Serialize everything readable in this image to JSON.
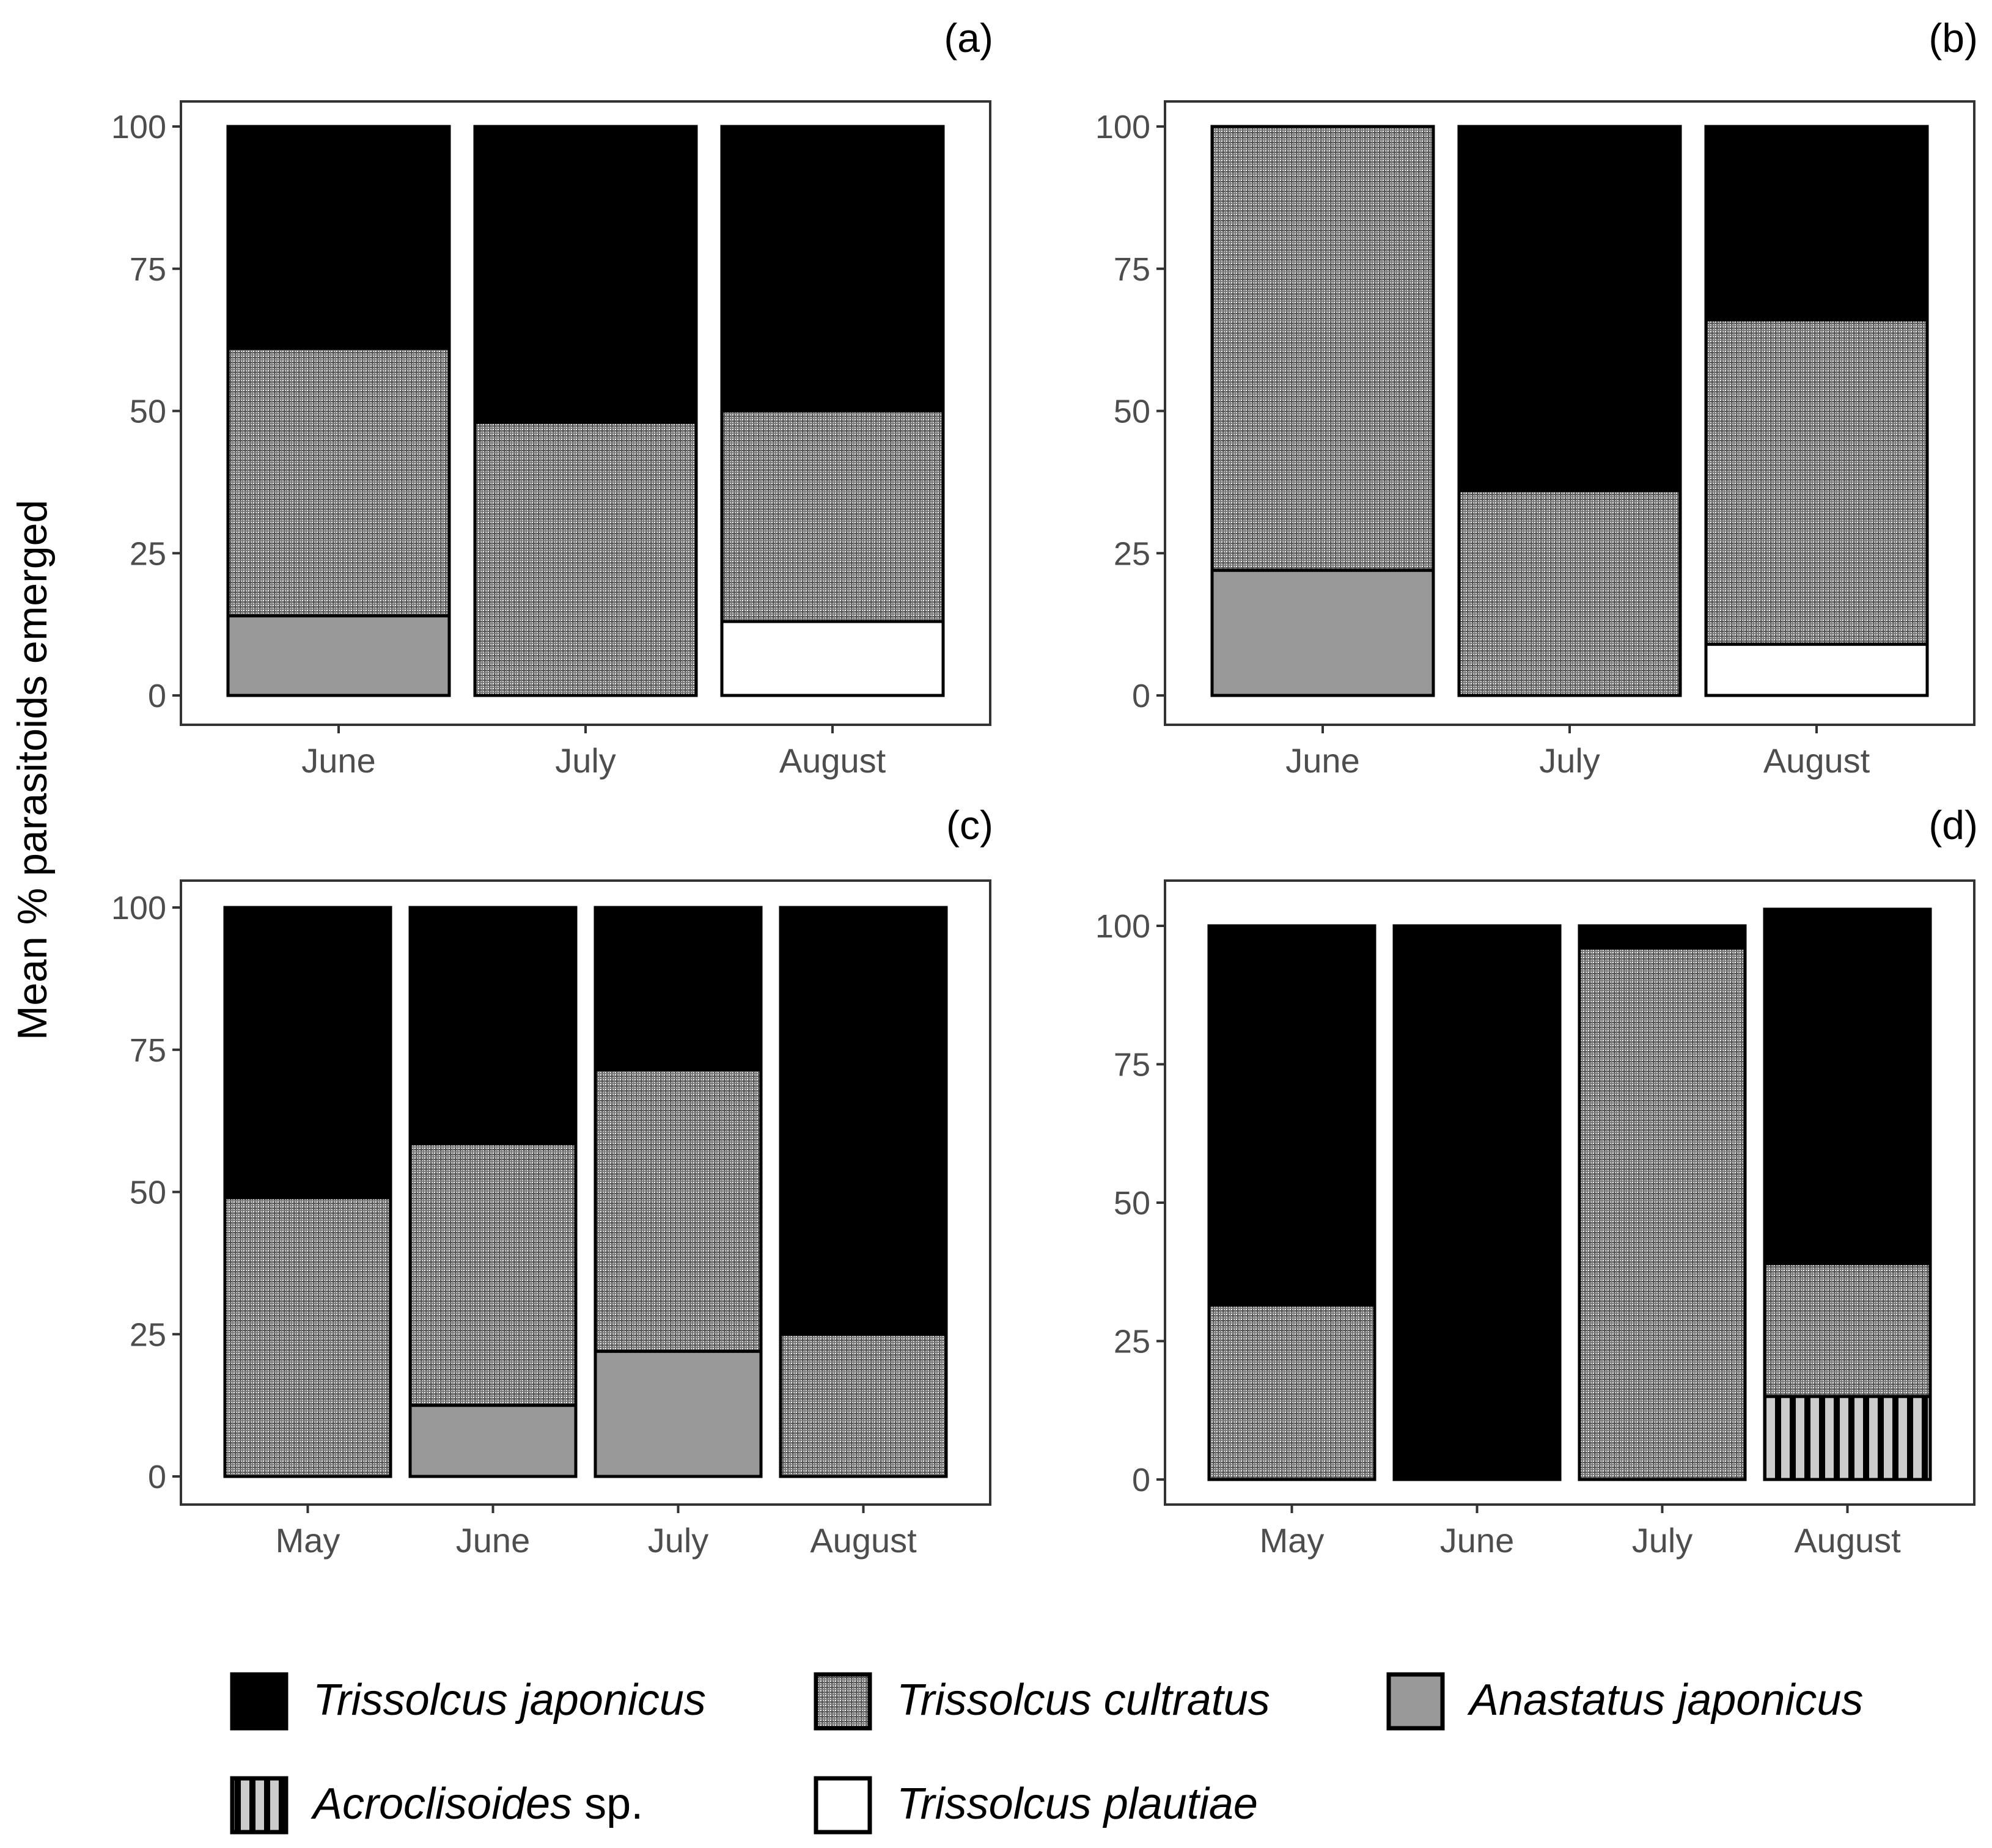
{
  "chart_data": [
    {
      "type": "bar",
      "stacked": true,
      "panel": "(a)",
      "categories": [
        "June",
        "July",
        "August"
      ],
      "series": [
        {
          "name": "Trissolcus plautiae",
          "values": [
            0,
            0,
            13
          ]
        },
        {
          "name": "Anastatus japonicus",
          "values": [
            14,
            0,
            0
          ]
        },
        {
          "name": "Trissolcus cultratus",
          "values": [
            47,
            48,
            37
          ]
        },
        {
          "name": "Trissolcus japonicus",
          "values": [
            39,
            52,
            50
          ]
        }
      ],
      "ylim": [
        0,
        100
      ],
      "yticks": [
        "0",
        "25",
        "50",
        "75",
        "100"
      ]
    },
    {
      "type": "bar",
      "stacked": true,
      "panel": "(b)",
      "categories": [
        "June",
        "July",
        "August"
      ],
      "series": [
        {
          "name": "Trissolcus plautiae",
          "values": [
            0,
            0,
            9
          ]
        },
        {
          "name": "Anastatus japonicus",
          "values": [
            22,
            0,
            0
          ]
        },
        {
          "name": "Trissolcus cultratus",
          "values": [
            78,
            36,
            57
          ]
        },
        {
          "name": "Trissolcus japonicus",
          "values": [
            0,
            64,
            34
          ]
        }
      ],
      "ylim": [
        0,
        100
      ],
      "yticks": [
        "0",
        "25",
        "50",
        "75",
        "100"
      ]
    },
    {
      "type": "bar",
      "stacked": true,
      "panel": "(c)",
      "categories": [
        "May",
        "June",
        "July",
        "August"
      ],
      "series": [
        {
          "name": "Anastatus japonicus",
          "values": [
            0,
            12.5,
            22,
            0
          ]
        },
        {
          "name": "Trissolcus cultratus",
          "values": [
            49,
            46,
            49.5,
            25
          ]
        },
        {
          "name": "Trissolcus japonicus",
          "values": [
            51,
            41.5,
            28.5,
            75
          ]
        }
      ],
      "ylim": [
        0,
        100
      ],
      "yticks": [
        "0",
        "25",
        "50",
        "75",
        "100"
      ]
    },
    {
      "type": "bar",
      "stacked": true,
      "panel": "(d)",
      "categories": [
        "May",
        "June",
        "July",
        "August"
      ],
      "series": [
        {
          "name": "Acroclisoides sp.",
          "values": [
            0,
            0,
            0,
            15
          ]
        },
        {
          "name": "Trissolcus cultratus",
          "values": [
            31.5,
            0,
            96,
            24
          ]
        },
        {
          "name": "Trissolcus japonicus",
          "values": [
            68.5,
            100,
            4,
            64
          ]
        }
      ],
      "ylim": [
        0,
        103
      ],
      "yticks": [
        "0",
        "25",
        "50",
        "75",
        "100"
      ]
    }
  ],
  "ylabel": "Mean % parasitoids emerged",
  "legend": [
    {
      "genus": "Trissolcus japonicus",
      "suffix": "",
      "fill": "black"
    },
    {
      "genus": "Trissolcus cultratus",
      "suffix": "",
      "fill": "grid"
    },
    {
      "genus": "Anastatus japonicus",
      "suffix": "",
      "fill": "gray"
    },
    {
      "genus": "Acroclisoides",
      "suffix": " sp.",
      "fill": "stripes"
    },
    {
      "genus": "Trissolcus plautiae",
      "suffix": "",
      "fill": "white"
    }
  ],
  "colors": {
    "black": "#000000",
    "gray": "#999999",
    "white": "#ffffff",
    "stripe_light": "#cccccc",
    "tick_text": "#4d4d4d",
    "axis": "#333333"
  }
}
